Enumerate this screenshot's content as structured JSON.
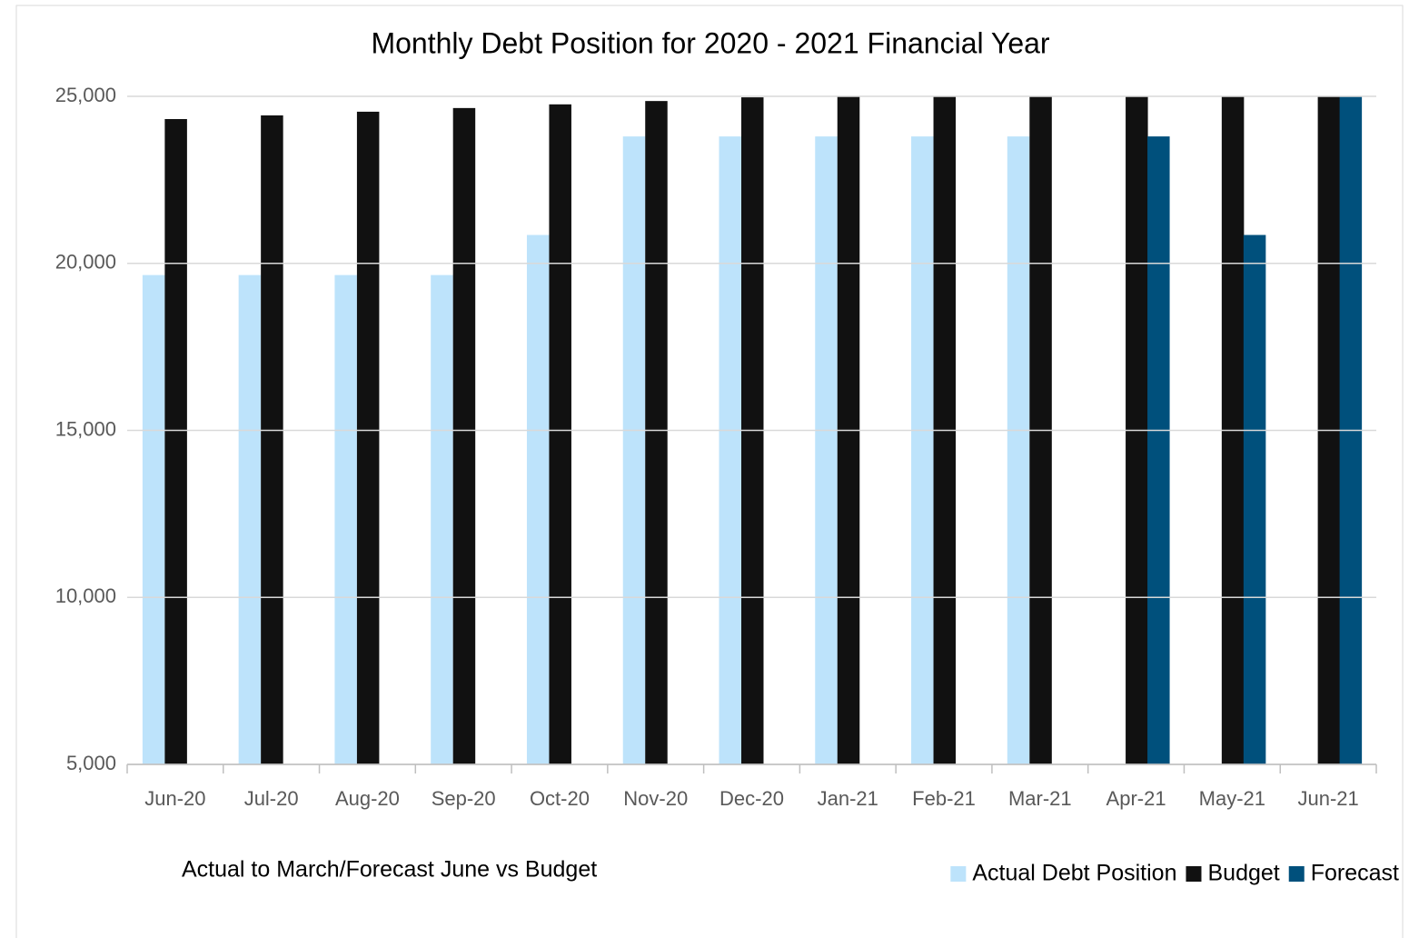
{
  "chart_data": {
    "type": "bar",
    "title": "Monthly Debt Position for 2020 - 2021 Financial Year",
    "subtitle": "Actual to March/Forecast June vs Budget",
    "categories": [
      "Jun-20",
      "Jul-20",
      "Aug-20",
      "Sep-20",
      "Oct-20",
      "Nov-20",
      "Dec-20",
      "Jan-21",
      "Feb-21",
      "Mar-21",
      "Apr-21",
      "May-21",
      "Jun-21"
    ],
    "series": [
      {
        "name": "Actual Debt Position",
        "color": "#bde3fb",
        "values": [
          19650,
          19650,
          19650,
          19650,
          20850,
          23800,
          23800,
          23800,
          23800,
          23800,
          null,
          null,
          null
        ]
      },
      {
        "name": "Budget",
        "color": "#111111",
        "values": [
          24320,
          24430,
          24540,
          24650,
          24760,
          24860,
          24970,
          25080,
          25190,
          25300,
          25410,
          25520,
          25630
        ]
      },
      {
        "name": "Forecast",
        "color": "#00507c",
        "values": [
          null,
          null,
          null,
          null,
          null,
          null,
          null,
          null,
          null,
          null,
          23800,
          20850,
          25500
        ]
      }
    ],
    "ylim": [
      5000,
      25000
    ],
    "yticks": [
      {
        "value": 5000,
        "label": "5,000"
      },
      {
        "value": 10000,
        "label": "10,000"
      },
      {
        "value": 15000,
        "label": "15,000"
      },
      {
        "value": 20000,
        "label": "20,000"
      },
      {
        "value": 25000,
        "label": "25,000"
      }
    ],
    "grid": true,
    "legend": "bottom-right"
  }
}
